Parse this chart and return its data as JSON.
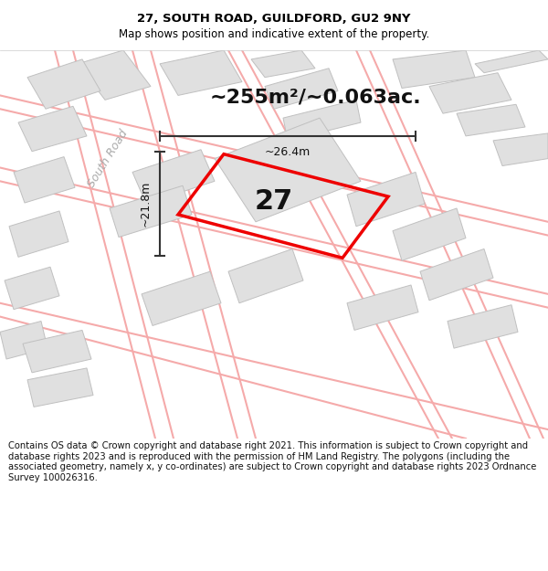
{
  "title_line1": "27, SOUTH ROAD, GUILDFORD, GU2 9NY",
  "title_line2": "Map shows position and indicative extent of the property.",
  "area_text": "~255m²/~0.063ac.",
  "label_27": "27",
  "dim_vertical": "~21.8m",
  "dim_horizontal": "~26.4m",
  "road_label": "South Road",
  "bg_color": "#f5f5f5",
  "block_face": "#e0e0e0",
  "block_edge": "#c0c0c0",
  "road_line_color": "#f5aaaa",
  "dim_color": "#333333",
  "prop_color": "#ee0000",
  "road_text_color": "#aaaaaa",
  "footer_text": "Contains OS data © Crown copyright and database right 2021. This information is subject to Crown copyright and database rights 2023 and is reproduced with the permission of HM Land Registry. The polygons (including the associated geometry, namely x, y co-ordinates) are subject to Crown copyright and database rights 2023 Ordnance Survey 100026316.",
  "title_fontsize": 9.5,
  "subtitle_fontsize": 8.5,
  "area_fontsize": 16,
  "num27_fontsize": 22,
  "dim_fontsize": 9,
  "road_fontsize": 9,
  "footer_fontsize": 7.2
}
